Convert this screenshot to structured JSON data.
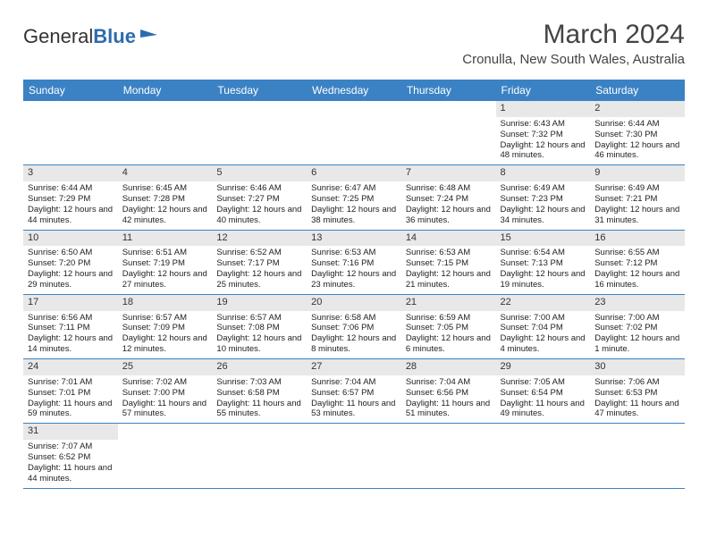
{
  "logo": {
    "text1": "General",
    "text2": "Blue"
  },
  "title": "March 2024",
  "location": "Cronulla, New South Wales, Australia",
  "colors": {
    "header_bg": "#3b82c4",
    "header_text": "#ffffff",
    "daynum_bg": "#e8e8e8",
    "cell_border": "#3b82c4",
    "logo_accent": "#2b6cb0"
  },
  "weekdays": [
    "Sunday",
    "Monday",
    "Tuesday",
    "Wednesday",
    "Thursday",
    "Friday",
    "Saturday"
  ],
  "weeks": [
    [
      null,
      null,
      null,
      null,
      null,
      {
        "n": "1",
        "sr": "6:43 AM",
        "ss": "7:32 PM",
        "dl": "12 hours and 48 minutes."
      },
      {
        "n": "2",
        "sr": "6:44 AM",
        "ss": "7:30 PM",
        "dl": "12 hours and 46 minutes."
      }
    ],
    [
      {
        "n": "3",
        "sr": "6:44 AM",
        "ss": "7:29 PM",
        "dl": "12 hours and 44 minutes."
      },
      {
        "n": "4",
        "sr": "6:45 AM",
        "ss": "7:28 PM",
        "dl": "12 hours and 42 minutes."
      },
      {
        "n": "5",
        "sr": "6:46 AM",
        "ss": "7:27 PM",
        "dl": "12 hours and 40 minutes."
      },
      {
        "n": "6",
        "sr": "6:47 AM",
        "ss": "7:25 PM",
        "dl": "12 hours and 38 minutes."
      },
      {
        "n": "7",
        "sr": "6:48 AM",
        "ss": "7:24 PM",
        "dl": "12 hours and 36 minutes."
      },
      {
        "n": "8",
        "sr": "6:49 AM",
        "ss": "7:23 PM",
        "dl": "12 hours and 34 minutes."
      },
      {
        "n": "9",
        "sr": "6:49 AM",
        "ss": "7:21 PM",
        "dl": "12 hours and 31 minutes."
      }
    ],
    [
      {
        "n": "10",
        "sr": "6:50 AM",
        "ss": "7:20 PM",
        "dl": "12 hours and 29 minutes."
      },
      {
        "n": "11",
        "sr": "6:51 AM",
        "ss": "7:19 PM",
        "dl": "12 hours and 27 minutes."
      },
      {
        "n": "12",
        "sr": "6:52 AM",
        "ss": "7:17 PM",
        "dl": "12 hours and 25 minutes."
      },
      {
        "n": "13",
        "sr": "6:53 AM",
        "ss": "7:16 PM",
        "dl": "12 hours and 23 minutes."
      },
      {
        "n": "14",
        "sr": "6:53 AM",
        "ss": "7:15 PM",
        "dl": "12 hours and 21 minutes."
      },
      {
        "n": "15",
        "sr": "6:54 AM",
        "ss": "7:13 PM",
        "dl": "12 hours and 19 minutes."
      },
      {
        "n": "16",
        "sr": "6:55 AM",
        "ss": "7:12 PM",
        "dl": "12 hours and 16 minutes."
      }
    ],
    [
      {
        "n": "17",
        "sr": "6:56 AM",
        "ss": "7:11 PM",
        "dl": "12 hours and 14 minutes."
      },
      {
        "n": "18",
        "sr": "6:57 AM",
        "ss": "7:09 PM",
        "dl": "12 hours and 12 minutes."
      },
      {
        "n": "19",
        "sr": "6:57 AM",
        "ss": "7:08 PM",
        "dl": "12 hours and 10 minutes."
      },
      {
        "n": "20",
        "sr": "6:58 AM",
        "ss": "7:06 PM",
        "dl": "12 hours and 8 minutes."
      },
      {
        "n": "21",
        "sr": "6:59 AM",
        "ss": "7:05 PM",
        "dl": "12 hours and 6 minutes."
      },
      {
        "n": "22",
        "sr": "7:00 AM",
        "ss": "7:04 PM",
        "dl": "12 hours and 4 minutes."
      },
      {
        "n": "23",
        "sr": "7:00 AM",
        "ss": "7:02 PM",
        "dl": "12 hours and 1 minute."
      }
    ],
    [
      {
        "n": "24",
        "sr": "7:01 AM",
        "ss": "7:01 PM",
        "dl": "11 hours and 59 minutes."
      },
      {
        "n": "25",
        "sr": "7:02 AM",
        "ss": "7:00 PM",
        "dl": "11 hours and 57 minutes."
      },
      {
        "n": "26",
        "sr": "7:03 AM",
        "ss": "6:58 PM",
        "dl": "11 hours and 55 minutes."
      },
      {
        "n": "27",
        "sr": "7:04 AM",
        "ss": "6:57 PM",
        "dl": "11 hours and 53 minutes."
      },
      {
        "n": "28",
        "sr": "7:04 AM",
        "ss": "6:56 PM",
        "dl": "11 hours and 51 minutes."
      },
      {
        "n": "29",
        "sr": "7:05 AM",
        "ss": "6:54 PM",
        "dl": "11 hours and 49 minutes."
      },
      {
        "n": "30",
        "sr": "7:06 AM",
        "ss": "6:53 PM",
        "dl": "11 hours and 47 minutes."
      }
    ],
    [
      {
        "n": "31",
        "sr": "7:07 AM",
        "ss": "6:52 PM",
        "dl": "11 hours and 44 minutes."
      },
      null,
      null,
      null,
      null,
      null,
      null
    ]
  ],
  "labels": {
    "sunrise": "Sunrise:",
    "sunset": "Sunset:",
    "daylight": "Daylight:"
  }
}
